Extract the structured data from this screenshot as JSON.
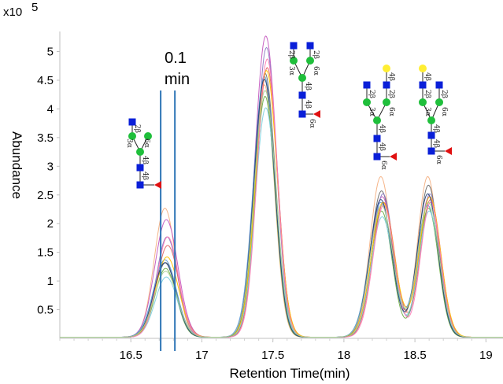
{
  "chart_data": {
    "type": "line",
    "title": "",
    "xlabel": "Retention Time(min)",
    "ylabel": "Abundance",
    "y_multiplier_label": "x10",
    "y_multiplier_exp": "5",
    "xlim": [
      16.0,
      19.12
    ],
    "ylim": [
      0,
      5.35
    ],
    "xticks": [
      "16.5",
      "17",
      "17.5",
      "18",
      "18.5",
      "19"
    ],
    "yticks": [
      "0.5",
      "1",
      "1.5",
      "2",
      "2.5",
      "3",
      "3.5",
      "4",
      "4.5",
      "5"
    ],
    "annotation": {
      "line1": "0.1",
      "line2": "min",
      "x_start": 16.71,
      "x_end": 16.81,
      "color": "#2e75b6"
    },
    "peak_centers": [
      16.75,
      17.45,
      18.27,
      18.6
    ],
    "series": [
      {
        "color": "#f4b183",
        "peaks": [
          2.25,
          4.4,
          2.8,
          2.8
        ]
      },
      {
        "color": "#6b6b6b",
        "peaks": [
          1.3,
          4.6,
          2.55,
          2.65
        ]
      },
      {
        "color": "#c55ac0",
        "peaks": [
          2.05,
          5.25,
          2.45,
          2.45
        ]
      },
      {
        "color": "#8e7cc3",
        "peaks": [
          1.75,
          5.05,
          2.5,
          2.5
        ]
      },
      {
        "color": "#e06666",
        "peaks": [
          1.6,
          4.7,
          2.35,
          2.4
        ]
      },
      {
        "color": "#5b9bd5",
        "peaks": [
          1.35,
          4.55,
          2.35,
          2.3
        ]
      },
      {
        "color": "#70ad47",
        "peaks": [
          1.2,
          4.2,
          2.2,
          2.25
        ]
      },
      {
        "color": "#7fd0e0",
        "peaks": [
          1.05,
          4.0,
          2.1,
          2.2
        ]
      },
      {
        "color": "#ffc000",
        "peaks": [
          1.4,
          4.65,
          2.35,
          2.45
        ]
      },
      {
        "color": "#ff7eb6",
        "peaks": [
          1.75,
          4.85,
          2.3,
          2.35
        ]
      },
      {
        "color": "#264478",
        "peaks": [
          1.3,
          4.5,
          2.4,
          2.5
        ]
      },
      {
        "color": "#a9d18e",
        "peaks": [
          1.15,
          4.3,
          2.3,
          2.35
        ]
      }
    ],
    "glycans": [
      {
        "links": [
          "2β",
          "3α",
          "6α",
          "4β",
          "4β",
          "6α"
        ]
      },
      {
        "links": [
          "2β",
          "2β",
          "3α",
          "6α",
          "4β",
          "4β",
          "6α"
        ]
      },
      {
        "links": [
          "2β",
          "4β",
          "3α",
          "2β",
          "6α",
          "4β",
          "4β",
          "6α"
        ]
      },
      {
        "links": [
          "4β",
          "2β",
          "3α",
          "2β",
          "6α",
          "4β",
          "4β",
          "6α"
        ]
      }
    ],
    "colors": {
      "hexnac": "#0a1fd8",
      "hexose_mannose": "#1fbf3b",
      "galactose": "#ffee33",
      "fucose": "#e01010",
      "annotation_line": "#2e75b6"
    }
  }
}
